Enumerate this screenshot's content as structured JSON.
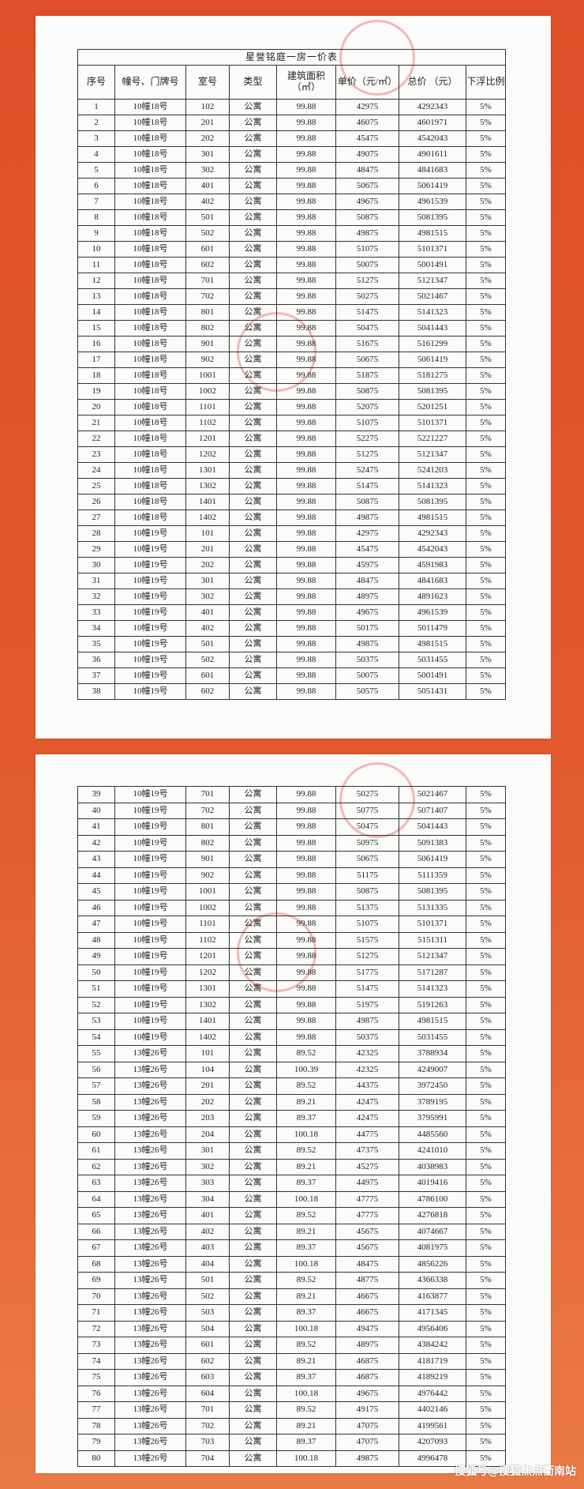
{
  "pages": [
    {
      "title": "星誉铭庭一房一价表",
      "headers": [
        "序号",
        "幢号、门牌号",
        "室号",
        "类型",
        "建筑面积（㎡）",
        "单价（元/㎡）",
        "总价 （元）",
        "下浮比例"
      ],
      "rows": [
        [
          "1",
          "10幢18号",
          "102",
          "公寓",
          "99.88",
          "42975",
          "4292343",
          "5%"
        ],
        [
          "2",
          "10幢18号",
          "201",
          "公寓",
          "99.88",
          "46075",
          "4601971",
          "5%"
        ],
        [
          "3",
          "10幢18号",
          "202",
          "公寓",
          "99.88",
          "45475",
          "4542043",
          "5%"
        ],
        [
          "4",
          "10幢18号",
          "301",
          "公寓",
          "99.88",
          "49075",
          "4901611",
          "5%"
        ],
        [
          "5",
          "10幢18号",
          "302",
          "公寓",
          "99.88",
          "48475",
          "4841683",
          "5%"
        ],
        [
          "6",
          "10幢18号",
          "401",
          "公寓",
          "99.88",
          "50675",
          "5061419",
          "5%"
        ],
        [
          "7",
          "10幢18号",
          "402",
          "公寓",
          "99.88",
          "49675",
          "4961539",
          "5%"
        ],
        [
          "8",
          "10幢18号",
          "501",
          "公寓",
          "99.88",
          "50875",
          "5081395",
          "5%"
        ],
        [
          "9",
          "10幢18号",
          "502",
          "公寓",
          "99.88",
          "49875",
          "4981515",
          "5%"
        ],
        [
          "10",
          "10幢18号",
          "601",
          "公寓",
          "99.88",
          "51075",
          "5101371",
          "5%"
        ],
        [
          "11",
          "10幢18号",
          "602",
          "公寓",
          "99.88",
          "50075",
          "5001491",
          "5%"
        ],
        [
          "12",
          "10幢18号",
          "701",
          "公寓",
          "99.88",
          "51275",
          "5121347",
          "5%"
        ],
        [
          "13",
          "10幢18号",
          "702",
          "公寓",
          "99.88",
          "50275",
          "5021467",
          "5%"
        ],
        [
          "14",
          "10幢18号",
          "801",
          "公寓",
          "99.88",
          "51475",
          "5141323",
          "5%"
        ],
        [
          "15",
          "10幢18号",
          "802",
          "公寓",
          "99.88",
          "50475",
          "5041443",
          "5%"
        ],
        [
          "16",
          "10幢18号",
          "901",
          "公寓",
          "99.88",
          "51675",
          "5161299",
          "5%"
        ],
        [
          "17",
          "10幢18号",
          "902",
          "公寓",
          "99.88",
          "50675",
          "5061419",
          "5%"
        ],
        [
          "18",
          "10幢18号",
          "1001",
          "公寓",
          "99.88",
          "51875",
          "5181275",
          "5%"
        ],
        [
          "19",
          "10幢18号",
          "1002",
          "公寓",
          "99.88",
          "50875",
          "5081395",
          "5%"
        ],
        [
          "20",
          "10幢18号",
          "1101",
          "公寓",
          "99.88",
          "52075",
          "5201251",
          "5%"
        ],
        [
          "21",
          "10幢18号",
          "1102",
          "公寓",
          "99.88",
          "51075",
          "5101371",
          "5%"
        ],
        [
          "22",
          "10幢18号",
          "1201",
          "公寓",
          "99.88",
          "52275",
          "5221227",
          "5%"
        ],
        [
          "23",
          "10幢18号",
          "1202",
          "公寓",
          "99.88",
          "51275",
          "5121347",
          "5%"
        ],
        [
          "24",
          "10幢18号",
          "1301",
          "公寓",
          "99.88",
          "52475",
          "5241203",
          "5%"
        ],
        [
          "25",
          "10幢18号",
          "1302",
          "公寓",
          "99.88",
          "51475",
          "5141323",
          "5%"
        ],
        [
          "26",
          "10幢18号",
          "1401",
          "公寓",
          "99.88",
          "50875",
          "5081395",
          "5%"
        ],
        [
          "27",
          "10幢18号",
          "1402",
          "公寓",
          "99.88",
          "49875",
          "4981515",
          "5%"
        ],
        [
          "28",
          "10幢19号",
          "101",
          "公寓",
          "99.88",
          "42975",
          "4292343",
          "5%"
        ],
        [
          "29",
          "10幢19号",
          "201",
          "公寓",
          "99.88",
          "45475",
          "4542043",
          "5%"
        ],
        [
          "30",
          "10幢19号",
          "202",
          "公寓",
          "99.88",
          "45975",
          "4591983",
          "5%"
        ],
        [
          "31",
          "10幢19号",
          "301",
          "公寓",
          "99.88",
          "48475",
          "4841683",
          "5%"
        ],
        [
          "32",
          "10幢19号",
          "302",
          "公寓",
          "99.88",
          "48975",
          "4891623",
          "5%"
        ],
        [
          "33",
          "10幢19号",
          "401",
          "公寓",
          "99.88",
          "49675",
          "4961539",
          "5%"
        ],
        [
          "34",
          "10幢19号",
          "402",
          "公寓",
          "99.88",
          "50175",
          "5011479",
          "5%"
        ],
        [
          "35",
          "10幢19号",
          "501",
          "公寓",
          "99.88",
          "49875",
          "4981515",
          "5%"
        ],
        [
          "36",
          "10幢19号",
          "502",
          "公寓",
          "99.88",
          "50375",
          "5031455",
          "5%"
        ],
        [
          "37",
          "10幢19号",
          "601",
          "公寓",
          "99.88",
          "50075",
          "5001491",
          "5%"
        ],
        [
          "38",
          "10幢19号",
          "602",
          "公寓",
          "99.88",
          "50575",
          "5051431",
          "5%"
        ]
      ]
    },
    {
      "rows": [
        [
          "39",
          "10幢19号",
          "701",
          "公寓",
          "99.88",
          "50275",
          "5021467",
          "5%"
        ],
        [
          "40",
          "10幢19号",
          "702",
          "公寓",
          "99.88",
          "50775",
          "5071407",
          "5%"
        ],
        [
          "41",
          "10幢19号",
          "801",
          "公寓",
          "99.88",
          "50475",
          "5041443",
          "5%"
        ],
        [
          "42",
          "10幢19号",
          "802",
          "公寓",
          "99.88",
          "50975",
          "5091383",
          "5%"
        ],
        [
          "43",
          "10幢19号",
          "901",
          "公寓",
          "99.88",
          "50675",
          "5061419",
          "5%"
        ],
        [
          "44",
          "10幢19号",
          "902",
          "公寓",
          "99.88",
          "51175",
          "5111359",
          "5%"
        ],
        [
          "45",
          "10幢19号",
          "1001",
          "公寓",
          "99.88",
          "50875",
          "5081395",
          "5%"
        ],
        [
          "46",
          "10幢19号",
          "1002",
          "公寓",
          "99.88",
          "51375",
          "5131335",
          "5%"
        ],
        [
          "47",
          "10幢19号",
          "1101",
          "公寓",
          "99.88",
          "51075",
          "5101371",
          "5%"
        ],
        [
          "48",
          "10幢19号",
          "1102",
          "公寓",
          "99.88",
          "51575",
          "5151311",
          "5%"
        ],
        [
          "49",
          "10幢19号",
          "1201",
          "公寓",
          "99.88",
          "51275",
          "5121347",
          "5%"
        ],
        [
          "50",
          "10幢19号",
          "1202",
          "公寓",
          "99.88",
          "51775",
          "5171287",
          "5%"
        ],
        [
          "51",
          "10幢19号",
          "1301",
          "公寓",
          "99.88",
          "51475",
          "5141323",
          "5%"
        ],
        [
          "52",
          "10幢19号",
          "1302",
          "公寓",
          "99.88",
          "51975",
          "5191263",
          "5%"
        ],
        [
          "53",
          "10幢19号",
          "1401",
          "公寓",
          "99.88",
          "49875",
          "4981515",
          "5%"
        ],
        [
          "54",
          "10幢19号",
          "1402",
          "公寓",
          "99.88",
          "50375",
          "5031455",
          "5%"
        ],
        [
          "55",
          "13幢26号",
          "101",
          "公寓",
          "89.52",
          "42325",
          "3788934",
          "5%"
        ],
        [
          "56",
          "13幢26号",
          "104",
          "公寓",
          "100.39",
          "42325",
          "4249007",
          "5%"
        ],
        [
          "57",
          "13幢26号",
          "201",
          "公寓",
          "89.52",
          "44375",
          "3972450",
          "5%"
        ],
        [
          "58",
          "13幢26号",
          "202",
          "公寓",
          "89.21",
          "42475",
          "3789195",
          "5%"
        ],
        [
          "59",
          "13幢26号",
          "203",
          "公寓",
          "89.37",
          "42475",
          "3795991",
          "5%"
        ],
        [
          "60",
          "13幢26号",
          "204",
          "公寓",
          "100.18",
          "44775",
          "4485560",
          "5%"
        ],
        [
          "61",
          "13幢26号",
          "301",
          "公寓",
          "89.52",
          "47375",
          "4241010",
          "5%"
        ],
        [
          "62",
          "13幢26号",
          "302",
          "公寓",
          "89.21",
          "45275",
          "4038983",
          "5%"
        ],
        [
          "63",
          "13幢26号",
          "303",
          "公寓",
          "89.37",
          "44975",
          "4019416",
          "5%"
        ],
        [
          "64",
          "13幢26号",
          "304",
          "公寓",
          "100.18",
          "47775",
          "4786100",
          "5%"
        ],
        [
          "65",
          "13幢26号",
          "401",
          "公寓",
          "89.52",
          "47775",
          "4276818",
          "5%"
        ],
        [
          "66",
          "13幢26号",
          "402",
          "公寓",
          "89.21",
          "45675",
          "4074667",
          "5%"
        ],
        [
          "67",
          "13幢26号",
          "403",
          "公寓",
          "89.37",
          "45675",
          "4081975",
          "5%"
        ],
        [
          "68",
          "13幢26号",
          "404",
          "公寓",
          "100.18",
          "48475",
          "4856226",
          "5%"
        ],
        [
          "69",
          "13幢26号",
          "501",
          "公寓",
          "89.52",
          "48775",
          "4366338",
          "5%"
        ],
        [
          "70",
          "13幢26号",
          "502",
          "公寓",
          "89.21",
          "46675",
          "4163877",
          "5%"
        ],
        [
          "71",
          "13幢26号",
          "503",
          "公寓",
          "89.37",
          "46675",
          "4171345",
          "5%"
        ],
        [
          "72",
          "13幢26号",
          "504",
          "公寓",
          "100.18",
          "49475",
          "4956406",
          "5%"
        ],
        [
          "73",
          "13幢26号",
          "601",
          "公寓",
          "89.52",
          "48975",
          "4384242",
          "5%"
        ],
        [
          "74",
          "13幢26号",
          "602",
          "公寓",
          "89.21",
          "46875",
          "4181719",
          "5%"
        ],
        [
          "75",
          "13幢26号",
          "603",
          "公寓",
          "89.37",
          "46875",
          "4189219",
          "5%"
        ],
        [
          "76",
          "13幢26号",
          "604",
          "公寓",
          "100.18",
          "49675",
          "4976442",
          "5%"
        ],
        [
          "77",
          "13幢26号",
          "701",
          "公寓",
          "89.52",
          "49175",
          "4402146",
          "5%"
        ],
        [
          "78",
          "13幢26号",
          "702",
          "公寓",
          "89.21",
          "47075",
          "4199561",
          "5%"
        ],
        [
          "79",
          "13幢26号",
          "703",
          "公寓",
          "89.37",
          "47075",
          "4207093",
          "5%"
        ],
        [
          "80",
          "13幢26号",
          "704",
          "公寓",
          "100.18",
          "49875",
          "4996478",
          "5%"
        ]
      ]
    }
  ],
  "watermark": "搜狐号@搜狐焦点衢南站"
}
